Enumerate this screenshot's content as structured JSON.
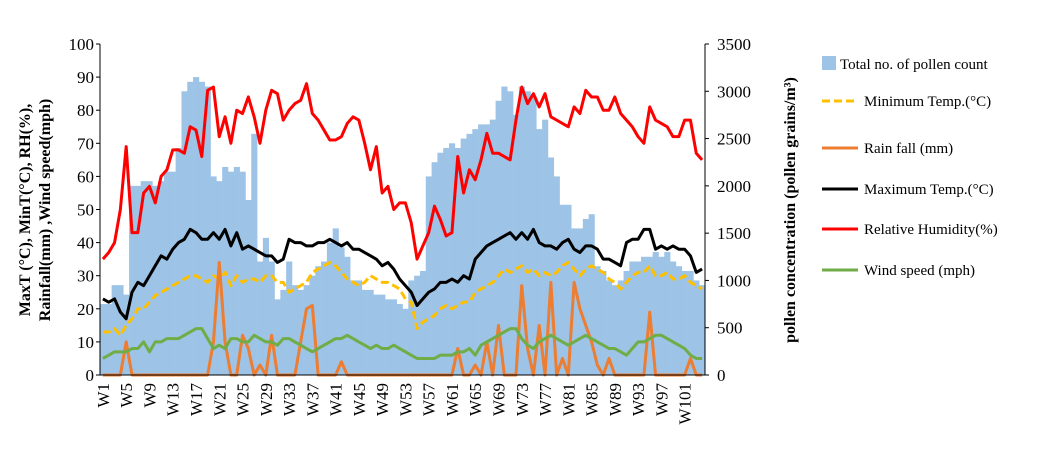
{
  "chart_data": {
    "type": "bar-line",
    "y_label": [
      "MaxT (°C), MinT(°C), RH(%),",
      "Rainfall(mm) ,Wind speed(mph)"
    ],
    "y2_label": "pollen concentration (pollen grains/m³)",
    "categories": [
      "W1",
      null,
      null,
      null,
      "W5",
      null,
      null,
      null,
      "W9",
      null,
      null,
      null,
      "W13",
      null,
      null,
      null,
      "W17",
      null,
      null,
      null,
      "W21",
      null,
      null,
      null,
      "W25",
      null,
      null,
      null,
      "W29",
      null,
      null,
      null,
      "W33",
      null,
      null,
      null,
      "W37",
      null,
      null,
      null,
      "W41",
      null,
      null,
      null,
      "W45",
      null,
      null,
      null,
      "W49",
      null,
      null,
      null,
      "W53",
      null,
      null,
      null,
      "W57",
      null,
      null,
      null,
      "W61",
      null,
      null,
      null,
      "W65",
      null,
      null,
      null,
      "W69",
      null,
      null,
      null,
      "W73",
      null,
      null,
      null,
      "W77",
      null,
      null,
      null,
      "W81",
      null,
      null,
      null,
      "W85",
      null,
      null,
      null,
      "W89",
      null,
      null,
      null,
      "W93",
      null,
      null,
      null,
      "W97",
      null,
      null,
      null,
      "W101",
      null,
      null,
      null
    ],
    "ylim": [
      0,
      100
    ],
    "yticks": [
      0,
      10,
      20,
      30,
      40,
      50,
      60,
      70,
      80,
      90,
      100
    ],
    "y2lim": [
      0,
      3500
    ],
    "y2ticks": [
      0,
      500,
      1000,
      1500,
      2000,
      2500,
      3000,
      3500
    ],
    "series": [
      {
        "name": "Total no. of pollen count",
        "kind": "bar",
        "axis": "y2",
        "color": "#9dc3e6",
        "values": [
          750,
          750,
          950,
          950,
          850,
          2000,
          2000,
          2050,
          2050,
          2000,
          2050,
          2150,
          2150,
          2400,
          3000,
          3100,
          3150,
          3100,
          3050,
          2100,
          2050,
          2200,
          2150,
          2200,
          2150,
          1850,
          2550,
          1200,
          1450,
          1200,
          800,
          900,
          1200,
          950,
          900,
          950,
          1050,
          1150,
          1200,
          1400,
          1550,
          1350,
          1250,
          1000,
          1000,
          900,
          900,
          850,
          850,
          800,
          800,
          750,
          700,
          1000,
          1050,
          1100,
          2100,
          2250,
          2350,
          2400,
          2450,
          2400,
          2500,
          2550,
          2600,
          2650,
          2650,
          2700,
          2900,
          3050,
          3000,
          2750,
          3050,
          3000,
          2950,
          2600,
          2700,
          2300,
          2100,
          1800,
          1800,
          1550,
          1550,
          1650,
          1700,
          1150,
          1100,
          1000,
          950,
          1000,
          1100,
          1200,
          1200,
          1250,
          1250,
          1300,
          1250,
          1300,
          1200,
          1150,
          1100,
          1100,
          1000,
          950
        ]
      },
      {
        "name": "Minimum Temp.(°C)",
        "kind": "line",
        "dashed": true,
        "color": "#ffc000",
        "values": [
          13,
          13,
          14,
          12,
          15,
          17,
          20,
          20,
          22,
          24,
          25,
          26,
          27,
          28,
          29,
          30,
          30,
          29,
          28,
          30,
          29,
          31,
          27,
          30,
          28,
          29,
          29,
          28,
          30,
          30,
          28,
          28,
          25,
          26,
          27,
          28,
          31,
          32,
          33,
          34,
          33,
          31,
          29,
          28,
          27,
          28,
          30,
          29,
          28,
          28,
          27,
          26,
          23,
          22,
          14,
          16,
          17,
          18,
          20,
          21,
          20,
          21,
          22,
          22,
          25,
          26,
          27,
          28,
          30,
          32,
          31,
          32,
          33,
          31,
          32,
          30,
          31,
          30,
          31,
          33,
          34,
          32,
          30,
          32,
          33,
          32,
          31,
          29,
          28,
          26,
          28,
          30,
          31,
          31,
          33,
          30,
          30,
          31,
          29,
          29,
          30,
          28,
          27,
          26
        ]
      },
      {
        "name": "Rain fall (mm)",
        "kind": "line",
        "color": "#ed7d31",
        "values": [
          0,
          0,
          0,
          0,
          10,
          0,
          0,
          0,
          0,
          0,
          0,
          0,
          0,
          0,
          0,
          0,
          0,
          0,
          0,
          10,
          34,
          10,
          0,
          0,
          12,
          8,
          0,
          3,
          0,
          12,
          0,
          0,
          0,
          0,
          10,
          20,
          21,
          0,
          0,
          0,
          0,
          4,
          0,
          0,
          0,
          0,
          0,
          0,
          0,
          0,
          0,
          0,
          0,
          0,
          0,
          0,
          0,
          0,
          0,
          0,
          0,
          8,
          0,
          0,
          3,
          0,
          10,
          0,
          15,
          0,
          0,
          0,
          27,
          8,
          0,
          15,
          0,
          28,
          0,
          5,
          0,
          28,
          20,
          15,
          10,
          3,
          0,
          5,
          0,
          0,
          0,
          0,
          0,
          0,
          19,
          0,
          0,
          0,
          0,
          0,
          0,
          5,
          0,
          0
        ]
      },
      {
        "name": "Maximum Temp.(°C)",
        "kind": "line",
        "color": "#000000",
        "values": [
          23,
          22,
          23,
          19,
          17,
          25,
          28,
          27,
          30,
          33,
          36,
          35,
          38,
          40,
          41,
          44,
          43,
          41,
          41,
          43,
          41,
          44,
          39,
          43,
          38,
          39,
          38,
          37,
          36,
          36,
          34,
          35,
          41,
          40,
          40,
          39,
          39,
          40,
          40,
          41,
          40,
          39,
          40,
          38,
          38,
          37,
          36,
          35,
          33,
          34,
          32,
          29,
          27,
          25,
          21,
          23,
          25,
          26,
          28,
          28,
          29,
          28,
          30,
          29,
          35,
          37,
          39,
          40,
          41,
          42,
          43,
          41,
          43,
          41,
          44,
          40,
          39,
          39,
          38,
          40,
          41,
          38,
          37,
          39,
          39,
          38,
          35,
          35,
          34,
          33,
          40,
          41,
          41,
          44,
          44,
          38,
          39,
          38,
          39,
          38,
          38,
          36,
          31,
          32
        ]
      },
      {
        "name": "Relative Humidity(%)",
        "kind": "line",
        "color": "#ff0000",
        "values": [
          35,
          37,
          40,
          50,
          69,
          43,
          43,
          55,
          57,
          52,
          60,
          62,
          68,
          68,
          67,
          75,
          74,
          66,
          86,
          87,
          72,
          78,
          70,
          80,
          79,
          84,
          78,
          70,
          80,
          86,
          85,
          77,
          80,
          82,
          83,
          88,
          79,
          77,
          74,
          71,
          71,
          72,
          76,
          78,
          77,
          70,
          62,
          69,
          55,
          57,
          50,
          52,
          52,
          46,
          35,
          39,
          43,
          51,
          47,
          42,
          43,
          66,
          55,
          62,
          59,
          65,
          73,
          67,
          67,
          66,
          65,
          77,
          87,
          82,
          85,
          81,
          85,
          78,
          77,
          76,
          75,
          81,
          79,
          86,
          84,
          84,
          80,
          80,
          84,
          79,
          77,
          75,
          72,
          70,
          81,
          77,
          76,
          75,
          72,
          72,
          77,
          77,
          67,
          65
        ]
      },
      {
        "name": "Wind speed (mph)",
        "kind": "line",
        "color": "#70ad47",
        "values": [
          5,
          6,
          7,
          7,
          7,
          8,
          8,
          10,
          7,
          10,
          10,
          11,
          11,
          11,
          12,
          13,
          14,
          14,
          11,
          8,
          9,
          8,
          11,
          11,
          10,
          10,
          12,
          11,
          10,
          10,
          9,
          11,
          11,
          10,
          9,
          8,
          7,
          8,
          9,
          10,
          11,
          11,
          12,
          11,
          10,
          9,
          8,
          9,
          8,
          8,
          9,
          8,
          7,
          6,
          5,
          5,
          5,
          5,
          6,
          6,
          6,
          7,
          7,
          8,
          6,
          9,
          10,
          11,
          12,
          13,
          14,
          14,
          11,
          9,
          8,
          10,
          11,
          12,
          11,
          10,
          9,
          10,
          11,
          12,
          11,
          10,
          9,
          8,
          8,
          7,
          6,
          8,
          10,
          10,
          11,
          12,
          12,
          11,
          10,
          9,
          8,
          6,
          5,
          5
        ]
      }
    ]
  }
}
